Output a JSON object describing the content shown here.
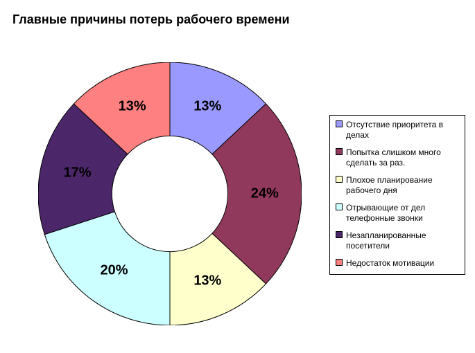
{
  "title": "Главные причины потерь рабочего времени",
  "title_fontsize": 18,
  "chart": {
    "type": "donut",
    "background_color": "#ffffff",
    "border_color": "#000000",
    "inner_radius_ratio": 0.44,
    "outer_radius": 190,
    "start_angle_deg": -90,
    "direction": "clockwise",
    "label_fontsize": 20,
    "label_color": "#000000",
    "slices": [
      {
        "label": "13%",
        "value": 13,
        "color": "#9999ff"
      },
      {
        "label": "24%",
        "value": 24,
        "color": "#91395c"
      },
      {
        "label": "13%",
        "value": 13,
        "color": "#ffffcc"
      },
      {
        "label": "20%",
        "value": 20,
        "color": "#ccffff"
      },
      {
        "label": "17%",
        "value": 17,
        "color": "#4b2769"
      },
      {
        "label": "13%",
        "value": 13,
        "color": "#ff8080"
      }
    ]
  },
  "legend": {
    "fontsize": 12,
    "items": [
      {
        "label": "Отсутствие приоритета в делах",
        "color": "#9999ff"
      },
      {
        "label": "Попытка слишком много сделать за раз.",
        "color": "#91395c"
      },
      {
        "label": "Плохое планирование рабочего дня",
        "color": "#ffffcc"
      },
      {
        "label": "Отрывающие от дел телефонные звонки",
        "color": "#ccffff"
      },
      {
        "label": "Незапланированные посетители",
        "color": "#4b2769"
      },
      {
        "label": "Недостаток мотивации",
        "color": "#ff8080"
      }
    ]
  }
}
